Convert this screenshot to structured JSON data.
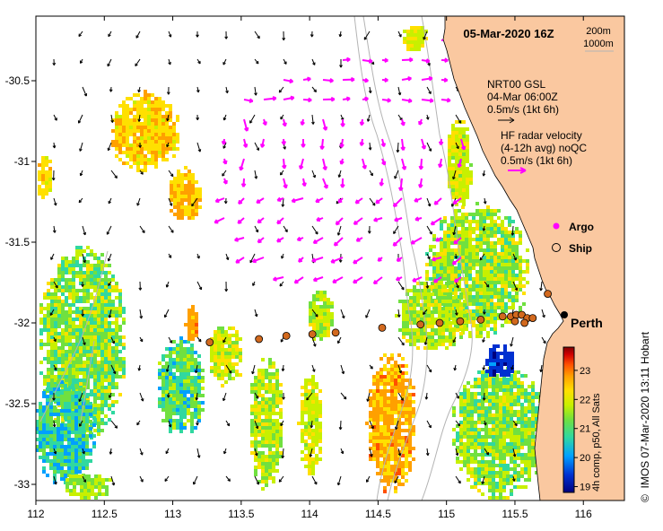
{
  "title": "05-Mar-2020 16Z",
  "depth_legend": {
    "line1": "200m",
    "line2": "1000m"
  },
  "model_vector": {
    "line1": "NRT00 GSL",
    "line2": "04-Mar 06:00Z",
    "line3": "0.5m/s (1kt 6h)"
  },
  "radar_vector": {
    "line1": "HF radar velocity",
    "line2": "(4-12h avg) noQC",
    "line3": "0.5m/s (1kt 6h)"
  },
  "symbols": {
    "argo": "Argo",
    "ship": "Ship"
  },
  "city": "Perth",
  "colorbar": {
    "label": "4h comp, p50, All Sats",
    "ticks": [
      "23",
      "22",
      "21",
      "20",
      "19"
    ],
    "min": 18.8,
    "max": 23.8,
    "colors": [
      "#00007f",
      "#0030d0",
      "#00a0ff",
      "#30d8a0",
      "#70e040",
      "#c8f000",
      "#ffe000",
      "#ffa000",
      "#ff5000",
      "#d00000",
      "#800000"
    ]
  },
  "credit": "IMOS 07-Mar-2020 13:11 Hobart",
  "copyright_symbol": "©",
  "axes": {
    "x_ticks": [
      "112",
      "112.5",
      "113",
      "113.5",
      "114",
      "114.5",
      "115",
      "115.5",
      "116"
    ],
    "y_ticks": [
      "-30.5",
      "-31",
      "-31.5",
      "-32",
      "-32.5",
      "-33"
    ]
  },
  "map_extent": {
    "lon": [
      112,
      116.3
    ],
    "lat": [
      -33.1,
      -30.1
    ]
  },
  "colors": {
    "land": "#fac8a0",
    "radar": "#ff00ff",
    "ship": "#d2691e"
  },
  "ship_positions": [
    [
      113.27,
      -32.12
    ],
    [
      113.63,
      -32.1
    ],
    [
      113.83,
      -32.08
    ],
    [
      114.02,
      -32.07
    ],
    [
      114.19,
      -32.06
    ],
    [
      114.53,
      -32.03
    ],
    [
      114.81,
      -32.01
    ],
    [
      114.95,
      -32.0
    ],
    [
      115.1,
      -31.99
    ],
    [
      115.25,
      -31.98
    ],
    [
      115.41,
      -31.96
    ],
    [
      115.47,
      -31.96
    ],
    [
      115.51,
      -31.95
    ],
    [
      115.55,
      -31.95
    ],
    [
      115.59,
      -31.97
    ],
    [
      115.63,
      -31.97
    ],
    [
      115.5,
      -31.99
    ],
    [
      115.57,
      -32.0
    ],
    [
      115.74,
      -31.82
    ]
  ]
}
